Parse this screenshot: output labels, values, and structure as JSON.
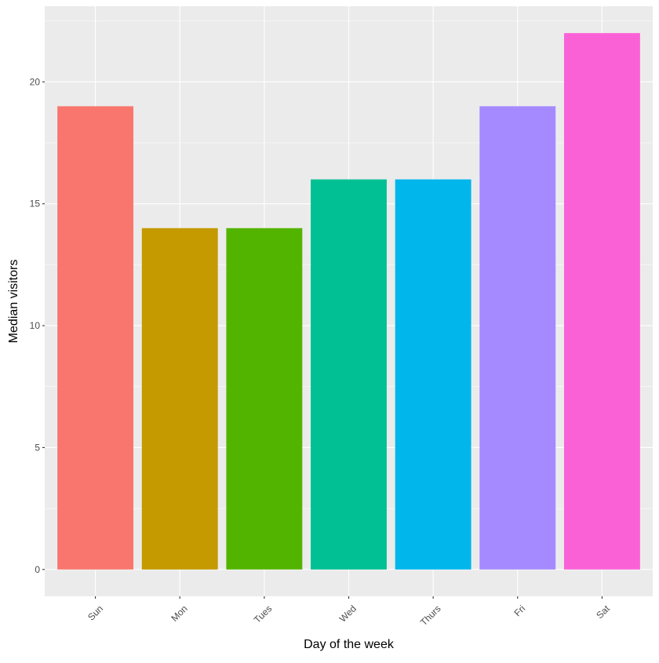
{
  "chart_data": {
    "type": "bar",
    "title": "",
    "xlabel": "Day of the week",
    "ylabel": "Median visitors",
    "categories": [
      "Sun",
      "Mon",
      "Tues",
      "Wed",
      "Thurs",
      "Fri",
      "Sat"
    ],
    "values": [
      19,
      14,
      14,
      16,
      16,
      19,
      22
    ],
    "colors": [
      "#F8766D",
      "#C49A00",
      "#53B400",
      "#00C094",
      "#00B6EB",
      "#A58AFF",
      "#FB61D7"
    ],
    "ylim": [
      -1.1,
      23.1
    ],
    "yticks": [
      0,
      5,
      10,
      15,
      20
    ],
    "ytick_labels": [
      "0",
      "5",
      "10",
      "15",
      "20"
    ],
    "grid": true,
    "legend": "none",
    "panel_background": "#EBEBEB",
    "grid_color": "#FFFFFF"
  }
}
